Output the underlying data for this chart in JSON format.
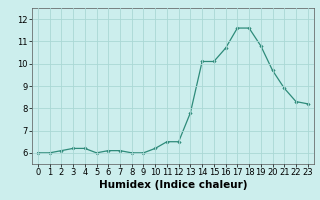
{
  "x": [
    0,
    1,
    2,
    3,
    4,
    5,
    6,
    7,
    8,
    9,
    10,
    11,
    12,
    13,
    14,
    15,
    16,
    17,
    18,
    19,
    20,
    21,
    22,
    23
  ],
  "y": [
    6.0,
    6.0,
    6.1,
    6.2,
    6.2,
    6.0,
    6.1,
    6.1,
    6.0,
    6.0,
    6.2,
    6.5,
    6.5,
    7.8,
    10.1,
    10.1,
    10.7,
    11.6,
    11.6,
    10.8,
    9.7,
    8.9,
    8.3,
    8.2
  ],
  "line_color": "#2e8b7a",
  "marker": "D",
  "marker_size": 1.8,
  "background_color": "#cceeed",
  "grid_color": "#aad8d5",
  "xlabel": "Humidex (Indice chaleur)",
  "xlim": [
    -0.5,
    23.5
  ],
  "ylim": [
    5.5,
    12.5
  ],
  "yticks": [
    6,
    7,
    8,
    9,
    10,
    11,
    12
  ],
  "xticks": [
    0,
    1,
    2,
    3,
    4,
    5,
    6,
    7,
    8,
    9,
    10,
    11,
    12,
    13,
    14,
    15,
    16,
    17,
    18,
    19,
    20,
    21,
    22,
    23
  ],
  "tick_fontsize": 6,
  "xlabel_fontsize": 7.5
}
